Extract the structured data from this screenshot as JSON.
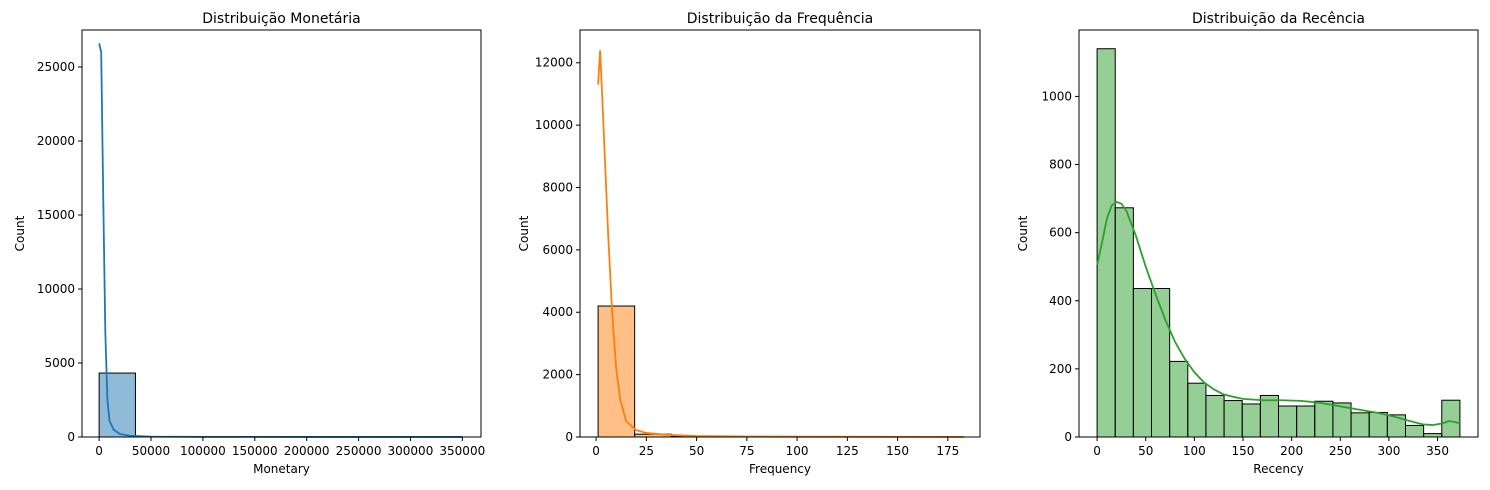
{
  "chart_data": [
    {
      "type": "bar",
      "title": "Distribuição Monetária",
      "xlabel": "Monetary",
      "ylabel": "Count",
      "xlim": [
        -16500,
        368000
      ],
      "ylim": [
        0,
        27500
      ],
      "xticks": [
        0,
        50000,
        100000,
        150000,
        200000,
        250000,
        300000,
        350000
      ],
      "yticks": [
        0,
        5000,
        10000,
        15000,
        20000,
        25000
      ],
      "bins": [
        {
          "x0": 0,
          "x1": 35000,
          "count": 4320
        },
        {
          "x0": 35000,
          "x1": 70000,
          "count": 20
        },
        {
          "x0": 70000,
          "x1": 105000,
          "count": 5
        },
        {
          "x0": 105000,
          "x1": 140000,
          "count": 3
        },
        {
          "x0": 140000,
          "x1": 175000,
          "count": 2
        },
        {
          "x0": 175000,
          "x1": 210000,
          "count": 2
        },
        {
          "x0": 210000,
          "x1": 245000,
          "count": 1
        },
        {
          "x0": 245000,
          "x1": 280000,
          "count": 1
        },
        {
          "x0": 280000,
          "x1": 315000,
          "count": 1
        },
        {
          "x0": 315000,
          "x1": 350000,
          "count": 2
        }
      ],
      "kde": [
        [
          0,
          26600
        ],
        [
          2000,
          26000
        ],
        [
          4000,
          16000
        ],
        [
          6000,
          7000
        ],
        [
          8000,
          2500
        ],
        [
          10000,
          1100
        ],
        [
          14000,
          500
        ],
        [
          20000,
          200
        ],
        [
          30000,
          80
        ],
        [
          50000,
          25
        ],
        [
          100000,
          10
        ],
        [
          200000,
          5
        ],
        [
          350000,
          3
        ]
      ],
      "fill_color": "#1f77b4",
      "line_color": "#1f77b4",
      "fill_opacity": 0.5
    },
    {
      "type": "bar",
      "title": "Distribuição da Frequência",
      "xlabel": "Frequency",
      "ylabel": "Count",
      "xlim": [
        -8,
        191
      ],
      "ylim": [
        0,
        13050
      ],
      "xticks": [
        0,
        25,
        50,
        75,
        100,
        125,
        150,
        175
      ],
      "yticks": [
        0,
        2000,
        4000,
        6000,
        8000,
        10000,
        12000
      ],
      "bins": [
        {
          "x0": 1,
          "x1": 19.2,
          "count": 4200
        },
        {
          "x0": 19.2,
          "x1": 37.4,
          "count": 90
        },
        {
          "x0": 37.4,
          "x1": 55.6,
          "count": 25
        },
        {
          "x0": 55.6,
          "x1": 73.8,
          "count": 10
        },
        {
          "x0": 73.8,
          "x1": 92,
          "count": 5
        },
        {
          "x0": 92,
          "x1": 110.2,
          "count": 4
        },
        {
          "x0": 110.2,
          "x1": 128.4,
          "count": 3
        },
        {
          "x0": 128.4,
          "x1": 146.6,
          "count": 2
        },
        {
          "x0": 146.6,
          "x1": 164.8,
          "count": 1
        },
        {
          "x0": 164.8,
          "x1": 183,
          "count": 1
        }
      ],
      "kde": [
        [
          1,
          11300
        ],
        [
          2,
          12400
        ],
        [
          3,
          11000
        ],
        [
          4,
          9500
        ],
        [
          6,
          6500
        ],
        [
          8,
          4000
        ],
        [
          10,
          2200
        ],
        [
          12,
          1200
        ],
        [
          15,
          500
        ],
        [
          20,
          220
        ],
        [
          25,
          130
        ],
        [
          35,
          70
        ],
        [
          50,
          30
        ],
        [
          75,
          15
        ],
        [
          100,
          10
        ],
        [
          150,
          5
        ],
        [
          183,
          2
        ]
      ],
      "fill_color": "#ff7f0e",
      "line_color": "#ff7f0e",
      "fill_opacity": 0.5
    },
    {
      "type": "bar",
      "title": "Distribuição da Recência",
      "xlabel": "Recency",
      "ylabel": "Count",
      "xlim": [
        -18.6,
        391.6
      ],
      "ylim": [
        0,
        1195
      ],
      "xticks": [
        0,
        50,
        100,
        150,
        200,
        250,
        300,
        350
      ],
      "yticks": [
        0,
        200,
        400,
        600,
        800,
        1000
      ],
      "bins": [
        {
          "x0": 0,
          "x1": 18.65,
          "count": 1140
        },
        {
          "x0": 18.65,
          "x1": 37.3,
          "count": 673
        },
        {
          "x0": 37.3,
          "x1": 55.95,
          "count": 436
        },
        {
          "x0": 55.95,
          "x1": 74.6,
          "count": 436
        },
        {
          "x0": 74.6,
          "x1": 93.25,
          "count": 222
        },
        {
          "x0": 93.25,
          "x1": 111.9,
          "count": 158
        },
        {
          "x0": 111.9,
          "x1": 130.55,
          "count": 122
        },
        {
          "x0": 130.55,
          "x1": 149.2,
          "count": 107
        },
        {
          "x0": 149.2,
          "x1": 167.85,
          "count": 97
        },
        {
          "x0": 167.85,
          "x1": 186.5,
          "count": 122
        },
        {
          "x0": 186.5,
          "x1": 205.15,
          "count": 91
        },
        {
          "x0": 205.15,
          "x1": 223.8,
          "count": 91
        },
        {
          "x0": 223.8,
          "x1": 242.45,
          "count": 105
        },
        {
          "x0": 242.45,
          "x1": 261.1,
          "count": 100
        },
        {
          "x0": 261.1,
          "x1": 279.75,
          "count": 71
        },
        {
          "x0": 279.75,
          "x1": 298.4,
          "count": 72
        },
        {
          "x0": 298.4,
          "x1": 317.05,
          "count": 65
        },
        {
          "x0": 317.05,
          "x1": 335.7,
          "count": 34
        },
        {
          "x0": 335.7,
          "x1": 354.35,
          "count": 10
        },
        {
          "x0": 354.35,
          "x1": 373,
          "count": 108
        }
      ],
      "kde": [
        [
          0,
          505
        ],
        [
          5,
          570
        ],
        [
          10,
          640
        ],
        [
          15,
          680
        ],
        [
          20,
          690
        ],
        [
          25,
          685
        ],
        [
          30,
          665
        ],
        [
          40,
          590
        ],
        [
          50,
          500
        ],
        [
          60,
          420
        ],
        [
          70,
          345
        ],
        [
          80,
          280
        ],
        [
          90,
          230
        ],
        [
          100,
          190
        ],
        [
          110,
          160
        ],
        [
          120,
          140
        ],
        [
          130,
          125
        ],
        [
          140,
          118
        ],
        [
          150,
          112
        ],
        [
          170,
          108
        ],
        [
          190,
          108
        ],
        [
          210,
          106
        ],
        [
          230,
          100
        ],
        [
          250,
          90
        ],
        [
          270,
          80
        ],
        [
          290,
          70
        ],
        [
          305,
          60
        ],
        [
          320,
          48
        ],
        [
          335,
          37
        ],
        [
          345,
          35
        ],
        [
          355,
          40
        ],
        [
          362,
          47
        ],
        [
          368,
          44
        ],
        [
          373,
          40
        ]
      ],
      "fill_color": "#2ca02c",
      "line_color": "#2ca02c",
      "fill_opacity": 0.5
    }
  ]
}
